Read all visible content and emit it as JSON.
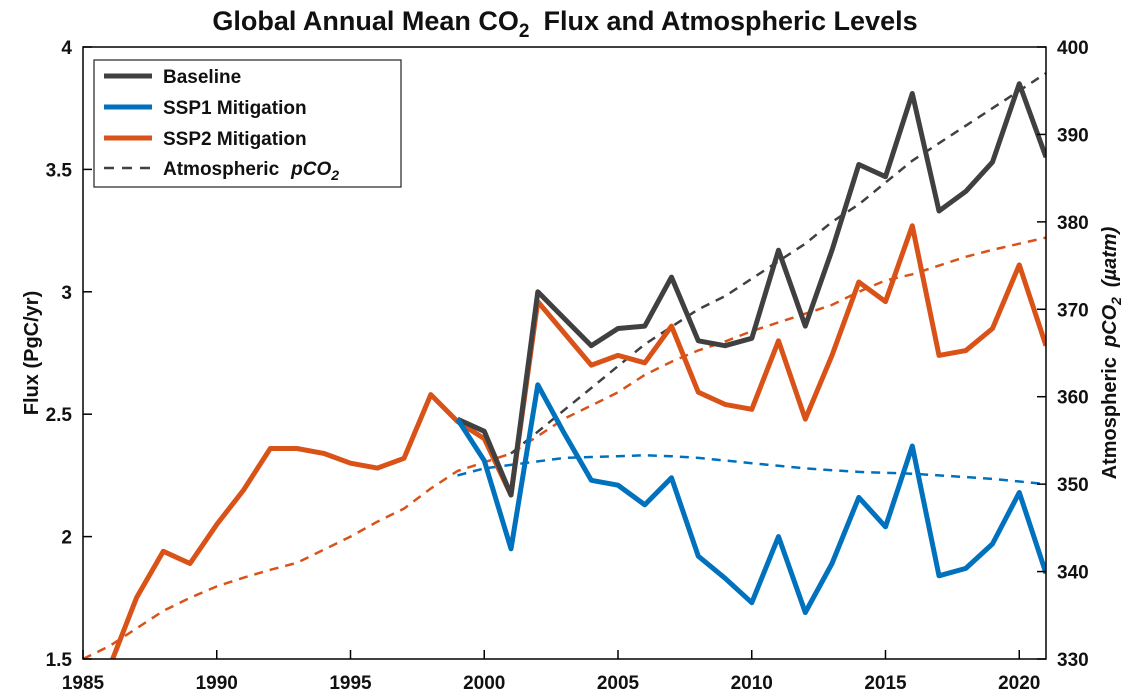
{
  "chart_data": {
    "type": "line",
    "title": "Global Annual Mean CO",
    "title_subscript": "2",
    "title_suffix": "Flux and Atmospheric Levels",
    "ylabel": "Flux (PgC/yr)",
    "y2label_prefix": "Atmospheric",
    "y2label_italic": "pCO",
    "y2label_subscript": "2",
    "y2label_unit": "(µatm)",
    "xlim": [
      1985,
      2021
    ],
    "ylim": [
      1.5,
      4
    ],
    "y2lim": [
      330,
      400
    ],
    "x_ticks": [
      "1985",
      "1990",
      "1995",
      "2000",
      "2005",
      "2010",
      "2015",
      "2020"
    ],
    "y_ticks": [
      "1.5",
      "2",
      "2.5",
      "3",
      "3.5",
      "4"
    ],
    "y2_ticks": [
      "330",
      "340",
      "350",
      "360",
      "370",
      "380",
      "390",
      "400"
    ],
    "legend_position": "top-left",
    "grid": false,
    "legend": [
      {
        "label": "Baseline",
        "color": "#404040",
        "style": "solid"
      },
      {
        "label": "SSP1 Mitigation",
        "color": "#0072BD",
        "style": "solid"
      },
      {
        "label": "SSP2 Mitigation",
        "color": "#D95319",
        "style": "solid"
      },
      {
        "label": "Atmospheric",
        "label_italic": "pCO",
        "label_subscript": "2",
        "color": "#404040",
        "style": "dashed"
      }
    ],
    "series": [
      {
        "name": "Baseline",
        "color": "#404040",
        "axis": "left",
        "x": [
          1999,
          2000,
          2001,
          2002,
          2003,
          2004,
          2005,
          2006,
          2007,
          2008,
          2009,
          2010,
          2011,
          2012,
          2013,
          2014,
          2015,
          2016,
          2017,
          2018,
          2019,
          2020,
          2021
        ],
        "values": [
          2.48,
          2.43,
          2.17,
          3.0,
          2.89,
          2.78,
          2.85,
          2.86,
          3.06,
          2.8,
          2.78,
          2.81,
          3.17,
          2.86,
          3.17,
          3.52,
          3.47,
          3.81,
          3.33,
          3.41,
          3.53,
          3.85,
          3.55
        ]
      },
      {
        "name": "SSP1 Mitigation",
        "color": "#0072BD",
        "axis": "left",
        "x": [
          1999,
          2000,
          2001,
          2002,
          2003,
          2004,
          2005,
          2006,
          2007,
          2008,
          2009,
          2010,
          2011,
          2012,
          2013,
          2014,
          2015,
          2016,
          2017,
          2018,
          2019,
          2020,
          2021
        ],
        "values": [
          2.48,
          2.31,
          1.95,
          2.62,
          2.42,
          2.23,
          2.21,
          2.13,
          2.24,
          1.92,
          1.83,
          1.73,
          2.0,
          1.69,
          1.89,
          2.16,
          2.04,
          2.37,
          1.84,
          1.87,
          1.97,
          2.18,
          1.85
        ]
      },
      {
        "name": "SSP2 Mitigation",
        "color": "#D95319",
        "axis": "left",
        "x": [
          1985,
          1986,
          1987,
          1988,
          1989,
          1990,
          1991,
          1992,
          1993,
          1994,
          1995,
          1996,
          1997,
          1998,
          1999,
          2000,
          2001,
          2002,
          2003,
          2004,
          2005,
          2006,
          2007,
          2008,
          2009,
          2010,
          2011,
          2012,
          2013,
          2014,
          2015,
          2016,
          2017,
          2018,
          2019,
          2020,
          2021
        ],
        "values": [
          1.29,
          1.47,
          1.75,
          1.94,
          1.89,
          2.05,
          2.19,
          2.36,
          2.36,
          2.34,
          2.3,
          2.28,
          2.32,
          2.58,
          2.47,
          2.4,
          2.17,
          2.96,
          2.83,
          2.7,
          2.74,
          2.71,
          2.86,
          2.59,
          2.54,
          2.52,
          2.8,
          2.48,
          2.74,
          3.04,
          2.96,
          3.27,
          2.74,
          2.76,
          2.85,
          3.11,
          2.78
        ]
      },
      {
        "name": "Atmospheric pCO2 (Baseline)",
        "color": "#404040",
        "axis": "right",
        "dashed": true,
        "x": [
          2001,
          2002,
          2003,
          2004,
          2005,
          2006,
          2007,
          2008,
          2009,
          2010,
          2011,
          2012,
          2013,
          2014,
          2015,
          2016,
          2017,
          2018,
          2019,
          2020,
          2021
        ],
        "values": [
          353.5,
          356.0,
          358.5,
          361.0,
          363.5,
          366.0,
          368.0,
          370.0,
          371.5,
          373.5,
          375.5,
          377.5,
          380.0,
          382.0,
          384.5,
          387.0,
          389.0,
          391.0,
          393.0,
          395.0,
          397.0
        ]
      },
      {
        "name": "Atmospheric pCO2 (SSP1)",
        "color": "#0072BD",
        "axis": "right",
        "dashed": true,
        "x": [
          1999,
          2000,
          2001,
          2002,
          2003,
          2004,
          2005,
          2006,
          2007,
          2008,
          2009,
          2010,
          2011,
          2012,
          2013,
          2014,
          2015,
          2016,
          2017,
          2018,
          2019,
          2020,
          2021
        ],
        "values": [
          351.0,
          351.8,
          352.2,
          352.6,
          353.0,
          353.1,
          353.2,
          353.3,
          353.2,
          353.0,
          352.7,
          352.4,
          352.1,
          351.8,
          351.6,
          351.4,
          351.3,
          351.2,
          351.0,
          350.8,
          350.6,
          350.3,
          350.0
        ]
      },
      {
        "name": "Atmospheric pCO2 (SSP2)",
        "color": "#D95319",
        "axis": "right",
        "dashed": true,
        "x": [
          1985,
          1986,
          1987,
          1988,
          1989,
          1990,
          1991,
          1992,
          1993,
          1994,
          1995,
          1996,
          1997,
          1998,
          1999,
          2000,
          2001,
          2002,
          2003,
          2004,
          2005,
          2006,
          2007,
          2008,
          2009,
          2010,
          2011,
          2012,
          2013,
          2014,
          2015,
          2016,
          2017,
          2018,
          2019,
          2020,
          2021
        ],
        "values": [
          330.0,
          331.5,
          333.5,
          335.5,
          337.0,
          338.3,
          339.3,
          340.2,
          341.0,
          342.5,
          344.0,
          345.7,
          347.2,
          349.5,
          351.5,
          352.5,
          353.5,
          355.5,
          357.5,
          359.0,
          360.5,
          362.5,
          364.0,
          365.3,
          366.3,
          367.5,
          368.5,
          369.5,
          370.5,
          372.0,
          373.3,
          374.0,
          375.0,
          376.0,
          376.8,
          377.5,
          378.2
        ]
      }
    ]
  }
}
